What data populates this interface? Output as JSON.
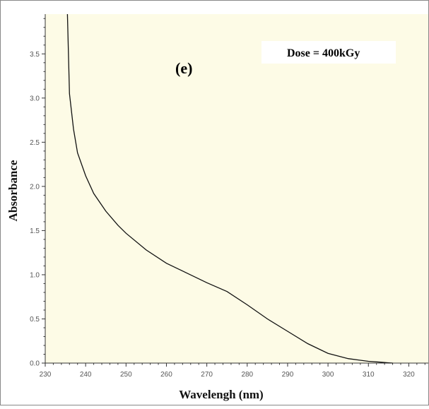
{
  "chart_data": {
    "type": "line",
    "title": "",
    "panel_label": "(e)",
    "annotation": "Dose = 400kGy",
    "xlabel": "Wavelengh (nm)",
    "ylabel": "Absorbance",
    "xlim": [
      230,
      325
    ],
    "ylim": [
      0,
      3.95
    ],
    "xticks": [
      230,
      240,
      250,
      260,
      270,
      280,
      290,
      300,
      310,
      320
    ],
    "xtick_labels": [
      "230",
      "240",
      "250",
      "260",
      "270",
      "280",
      "290",
      "300",
      "310",
      "320"
    ],
    "yticks": [
      0,
      0.5,
      1.0,
      1.5,
      2.0,
      2.5,
      3.0,
      3.5
    ],
    "ytick_labels": [
      "0.0",
      "0.5",
      "1.0",
      "1.5",
      "2.0",
      "2.5",
      "3.0",
      "3.5"
    ],
    "grid": false,
    "legend": "none",
    "colors": {
      "plot_background": "#fdfbe6",
      "line": "#111111",
      "annotation_box": "#ffffff"
    },
    "series": [
      {
        "x": [
          235.5,
          236,
          237,
          238,
          240,
          242,
          245,
          248,
          250,
          255,
          260,
          265,
          270,
          275,
          280,
          285,
          290,
          295,
          300,
          305,
          310,
          313,
          315,
          316
        ],
        "y": [
          3.95,
          3.05,
          2.65,
          2.38,
          2.12,
          1.92,
          1.72,
          1.56,
          1.47,
          1.28,
          1.13,
          1.02,
          0.91,
          0.81,
          0.66,
          0.5,
          0.36,
          0.22,
          0.11,
          0.05,
          0.02,
          0.01,
          0.003,
          0.0
        ]
      }
    ]
  }
}
